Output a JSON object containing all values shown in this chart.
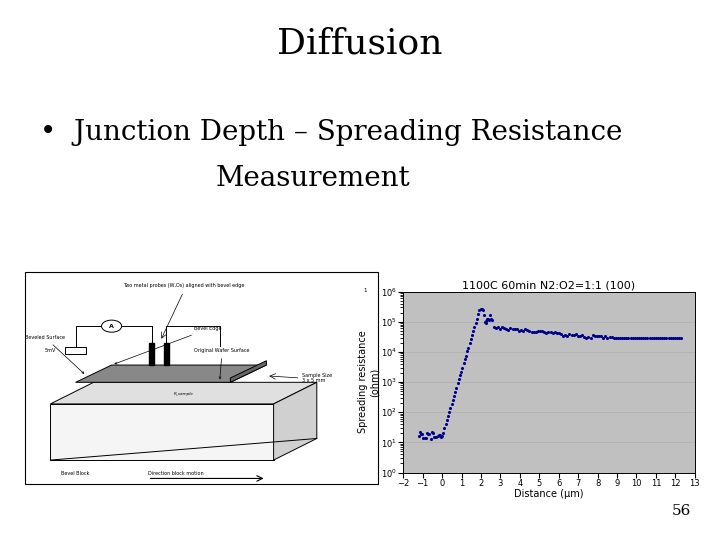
{
  "title": "Diffusion",
  "bullet_line1": "•  Junction Depth – Spreading Resistance",
  "bullet_line2": "Measurement",
  "page_number": "56",
  "chart_title": "1100C 60min N2:O2=1:1 (100)",
  "xlabel": "Distance (µm)",
  "ylabel": "Spreading resistance\n(ohm)",
  "bg_color": "#ffffff",
  "chart_bg": "#c0c0c0",
  "data_color": "#00008b",
  "xlim": [
    -2,
    13
  ],
  "xticks": [
    -2,
    -1,
    0,
    1,
    2,
    3,
    4,
    5,
    6,
    7,
    8,
    9,
    10,
    11,
    12,
    13
  ],
  "title_fontsize": 26,
  "bullet_fontsize": 20,
  "chart_title_fontsize": 8,
  "axis_label_fontsize": 7,
  "tick_fontsize": 6,
  "page_num_fontsize": 11
}
